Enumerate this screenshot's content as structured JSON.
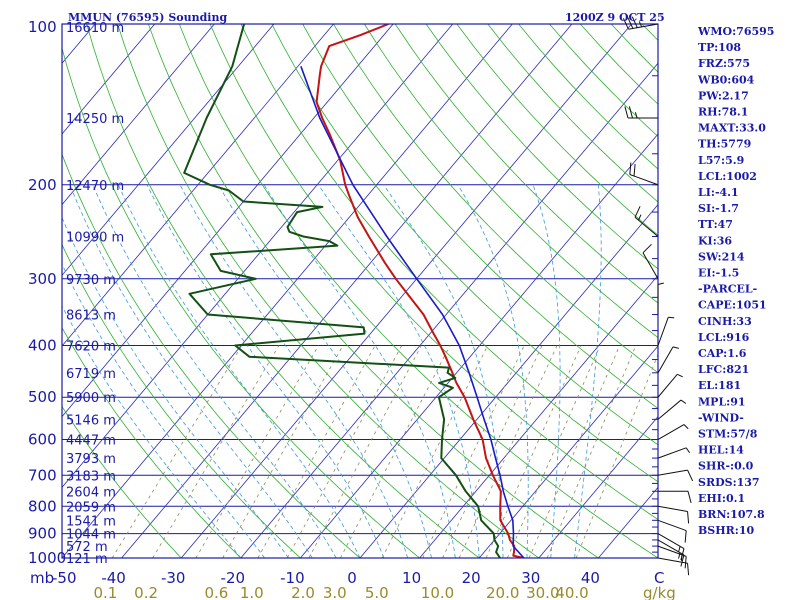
{
  "header": {
    "station": "MMUN (76595) Sounding",
    "time": "1200Z  9 OCT 25"
  },
  "colors": {
    "frame": "#1a1aa8",
    "isobar": "#1a1aa8",
    "isotherm": "#2a2ab8",
    "dry_adiabat": "#2fb02f",
    "moist_adiabat": "#3a9ad6",
    "mixing_ratio": "#8a8a5a",
    "temperature": "#c41414",
    "dewpoint": "#145014",
    "parcel": "#1a1ac8",
    "wind": "#111111",
    "mixing_label": "#9a8a2a"
  },
  "chart_data": {
    "type": "line",
    "title": "MMUN (76595) Sounding",
    "subtitle": "1200Z  9 OCT 25",
    "xlabel": "°C",
    "ylabel": "mb",
    "x_unit_label": "C",
    "y_unit_label": "mb",
    "mixing_ratio_unit": "g/kg",
    "xlim": [
      -50,
      50
    ],
    "ylim": [
      1000,
      100
    ],
    "y_scale": "log",
    "skew": true,
    "grid": true,
    "pressure_ticks": [
      "1000",
      "900",
      "800",
      "700",
      "600",
      "500",
      "400",
      "300",
      "200",
      "100"
    ],
    "pressure_values": [
      1000,
      900,
      800,
      700,
      600,
      500,
      400,
      300,
      200,
      100
    ],
    "height_labels": [
      {
        "p": 1000,
        "label": "121 m"
      },
      {
        "p": 950,
        "label": "572 m"
      },
      {
        "p": 900,
        "label": "1044 m"
      },
      {
        "p": 850,
        "label": "1541 m"
      },
      {
        "p": 800,
        "label": "2059 m"
      },
      {
        "p": 750,
        "label": "2604 m"
      },
      {
        "p": 700,
        "label": "3183 m"
      },
      {
        "p": 650,
        "label": "3793 m"
      },
      {
        "p": 600,
        "label": "4447 m"
      },
      {
        "p": 550,
        "label": "5146 m"
      },
      {
        "p": 500,
        "label": "5900 m"
      },
      {
        "p": 450,
        "label": "6719 m"
      },
      {
        "p": 400,
        "label": "7620 m"
      },
      {
        "p": 350,
        "label": "8613 m"
      },
      {
        "p": 300,
        "label": "9730 m"
      },
      {
        "p": 250,
        "label": "10990 m"
      },
      {
        "p": 200,
        "label": "12470 m"
      },
      {
        "p": 150,
        "label": "14250 m"
      },
      {
        "p": 100,
        "label": "16610 m"
      }
    ],
    "temperature_ticks": [
      "-40",
      "-30",
      "-20",
      "-10",
      "0",
      "10",
      "20",
      "30",
      "40"
    ],
    "temperature_tick_values": [
      -40,
      -30,
      -20,
      -10,
      0,
      10,
      20,
      30,
      40
    ],
    "corner_left_label": "mb",
    "corner_left_value": "-50",
    "corner_right_label": "C",
    "mixing_ratio_ticks": [
      "0.1",
      "0.2",
      "0.6",
      "1.0",
      "2.0",
      "3.0",
      "5.0",
      "10.0",
      "20.0",
      "30.0",
      "40.0"
    ],
    "mixing_ratio_values": [
      0.1,
      0.2,
      0.6,
      1.0,
      2.0,
      3.0,
      5.0,
      10.0,
      20.0,
      30.0,
      40.0
    ],
    "series": [
      {
        "name": "Temperature",
        "points": [
          [
            1000,
            27.5
          ],
          [
            990,
            25.4
          ],
          [
            975,
            25.0
          ],
          [
            950,
            24.2
          ],
          [
            925,
            22.6
          ],
          [
            900,
            21.4
          ],
          [
            850,
            18.2
          ],
          [
            800,
            16.2
          ],
          [
            750,
            14.2
          ],
          [
            700,
            10.6
          ],
          [
            650,
            7.0
          ],
          [
            600,
            3.8
          ],
          [
            550,
            -0.6
          ],
          [
            500,
            -5.2
          ],
          [
            470,
            -8.6
          ],
          [
            450,
            -10.7
          ],
          [
            420,
            -14.1
          ],
          [
            400,
            -16.6
          ],
          [
            380,
            -19.4
          ],
          [
            350,
            -23.8
          ],
          [
            330,
            -27.5
          ],
          [
            300,
            -33.5
          ],
          [
            280,
            -37.6
          ],
          [
            250,
            -44.0
          ],
          [
            230,
            -48.6
          ],
          [
            210,
            -53.0
          ],
          [
            200,
            -55.3
          ],
          [
            180,
            -59.6
          ],
          [
            160,
            -65.3
          ],
          [
            150,
            -68.6
          ],
          [
            140,
            -71.8
          ],
          [
            125,
            -75.0
          ],
          [
            120,
            -76.1
          ],
          [
            110,
            -77.6
          ],
          [
            105,
            -74.0
          ],
          [
            100,
            -70.8
          ]
        ]
      },
      {
        "name": "Dewpoint",
        "points": [
          [
            1000,
            23.5
          ],
          [
            975,
            22.0
          ],
          [
            950,
            21.5
          ],
          [
            925,
            20.0
          ],
          [
            900,
            19.0
          ],
          [
            850,
            15.0
          ],
          [
            800,
            12.5
          ],
          [
            750,
            8.3
          ],
          [
            700,
            4.4
          ],
          [
            650,
            -0.5
          ],
          [
            600,
            -3.0
          ],
          [
            550,
            -5.5
          ],
          [
            500,
            -9.5
          ],
          [
            480,
            -8.5
          ],
          [
            470,
            -11.5
          ],
          [
            460,
            -9.5
          ],
          [
            450,
            -11.5
          ],
          [
            440,
            -12.0
          ],
          [
            420,
            -47.0
          ],
          [
            400,
            -51.0
          ],
          [
            380,
            -31.0
          ],
          [
            370,
            -32.0
          ],
          [
            350,
            -60.0
          ],
          [
            320,
            -66.0
          ],
          [
            300,
            -57.0
          ],
          [
            290,
            -64.0
          ],
          [
            270,
            -68.0
          ],
          [
            260,
            -48.0
          ],
          [
            255,
            -50.0
          ],
          [
            250,
            -55.0
          ],
          [
            245,
            -58.0
          ],
          [
            240,
            -59.0
          ],
          [
            225,
            -59.5
          ],
          [
            220,
            -56.0
          ],
          [
            215,
            -70.0
          ],
          [
            205,
            -74.0
          ],
          [
            200,
            -78.0
          ],
          [
            190,
            -84.0
          ],
          [
            150,
            -88.0
          ],
          [
            120,
            -91.0
          ],
          [
            100,
            -95.0
          ]
        ]
      },
      {
        "name": "Parcel",
        "points": [
          [
            1000,
            27.5
          ],
          [
            950,
            24.0
          ],
          [
            900,
            22.3
          ],
          [
            850,
            20.3
          ],
          [
            800,
            17.5
          ],
          [
            750,
            14.6
          ],
          [
            700,
            11.8
          ],
          [
            650,
            8.6
          ],
          [
            600,
            5.2
          ],
          [
            550,
            1.2
          ],
          [
            500,
            -3.1
          ],
          [
            450,
            -7.9
          ],
          [
            400,
            -13.4
          ],
          [
            350,
            -20.6
          ],
          [
            300,
            -30.0
          ],
          [
            250,
            -41.0
          ],
          [
            200,
            -54.0
          ],
          [
            150,
            -69.0
          ],
          [
            120,
            -79.5
          ]
        ]
      }
    ],
    "wind_barbs": [
      {
        "p": 1000,
        "dir": 100,
        "kt": 10
      },
      {
        "p": 950,
        "dir": 110,
        "kt": 15
      },
      {
        "p": 925,
        "dir": 120,
        "kt": 15
      },
      {
        "p": 900,
        "dir": 120,
        "kt": 15
      },
      {
        "p": 850,
        "dir": 110,
        "kt": 10
      },
      {
        "p": 800,
        "dir": 100,
        "kt": 10
      },
      {
        "p": 750,
        "dir": 90,
        "kt": 10
      },
      {
        "p": 700,
        "dir": 80,
        "kt": 10
      },
      {
        "p": 650,
        "dir": 70,
        "kt": 5
      },
      {
        "p": 600,
        "dir": 60,
        "kt": 5
      },
      {
        "p": 550,
        "dir": 50,
        "kt": 5
      },
      {
        "p": 500,
        "dir": 40,
        "kt": 5
      },
      {
        "p": 450,
        "dir": 30,
        "kt": 5
      },
      {
        "p": 400,
        "dir": 20,
        "kt": 5
      },
      {
        "p": 350,
        "dir": 360,
        "kt": 5
      },
      {
        "p": 300,
        "dir": 330,
        "kt": 10
      },
      {
        "p": 250,
        "dir": 310,
        "kt": 15
      },
      {
        "p": 200,
        "dir": 290,
        "kt": 20
      },
      {
        "p": 150,
        "dir": 270,
        "kt": 25
      },
      {
        "p": 100,
        "dir": 260,
        "kt": 35
      }
    ]
  },
  "indices": [
    "WMO:76595",
    "TP:108",
    "FRZ:575",
    "WB0:604",
    "PW:2.17",
    "RH:78.1",
    "MAXT:33.0",
    "TH:5779",
    "L57:5.9",
    "LCL:1002",
    "LI:-4.1",
    "SI:-1.7",
    "TT:47",
    "KI:36",
    "SW:214",
    "EI:-1.5",
    "-PARCEL-",
    "CAPE:1051",
    "CINH:33",
    "LCL:916",
    "CAP:1.6",
    "LFC:821",
    "EL:181",
    "MPL:91",
    "-WIND-",
    "STM:57/8",
    "HEL:14",
    "SHR-:0.0",
    "SRDS:137",
    "EHI:0.1",
    "BRN:107.8",
    "BSHR:10"
  ]
}
